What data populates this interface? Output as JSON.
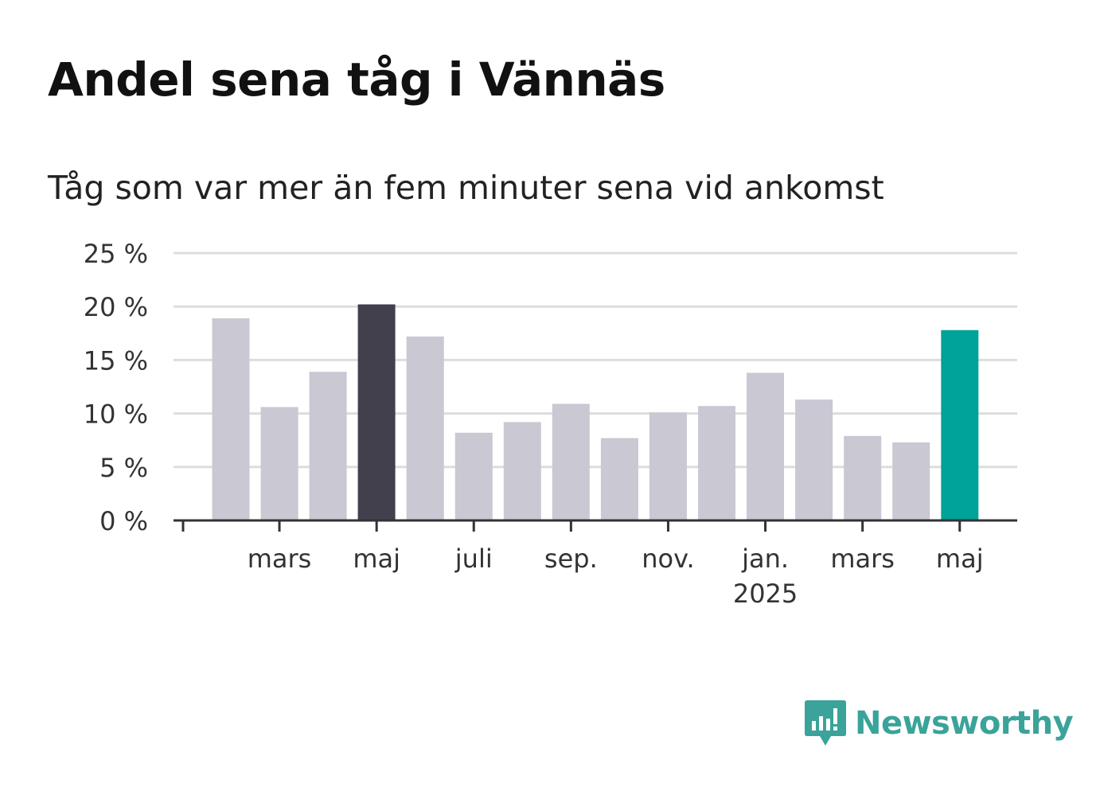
{
  "title": "Andel sena tåg i Vännäs",
  "subtitle": "Tåg som var mer än fem minuter sena vid ankomst",
  "brand": {
    "name": "Newsworthy",
    "color": "#3aa39a",
    "icon": "newsworthy-logo-icon"
  },
  "colors": {
    "default_bar": "#c9c8d3",
    "max_bar": "#43404d",
    "latest_bar": "#00a397",
    "grid": "#dddddd",
    "axis": "#333333"
  },
  "chart_data": {
    "type": "bar",
    "title": "Andel sena tåg i Vännäs",
    "subtitle": "Tåg som var mer än fem minuter sena vid ankomst",
    "xlabel": "",
    "ylabel": "",
    "x": [
      "2024-02",
      "2024-03",
      "2024-04",
      "2024-05",
      "2024-06",
      "2024-07",
      "2024-08",
      "2024-09",
      "2024-10",
      "2024-11",
      "2024-12",
      "2025-01",
      "2025-02",
      "2025-03",
      "2025-04",
      "2025-05"
    ],
    "values": [
      18.9,
      10.6,
      13.9,
      20.2,
      17.2,
      8.2,
      9.2,
      10.9,
      7.7,
      10.1,
      10.7,
      13.8,
      11.3,
      7.9,
      7.3,
      17.8
    ],
    "highlight": {
      "max_index": 3,
      "latest_index": 15
    },
    "ylim": [
      0,
      25
    ],
    "yticks": [
      0,
      5,
      10,
      15,
      20,
      25
    ],
    "ytick_labels": [
      "0 %",
      "5 %",
      "10 %",
      "15 %",
      "20 %",
      "25 %"
    ],
    "xtick_labels": [
      {
        "at": "2024-03",
        "label": "mars"
      },
      {
        "at": "2024-05",
        "label": "maj"
      },
      {
        "at": "2024-07",
        "label": "juli"
      },
      {
        "at": "2024-09",
        "label": "sep."
      },
      {
        "at": "2024-11",
        "label": "nov."
      },
      {
        "at": "2025-01",
        "label": "jan.",
        "sublabel": "2025"
      },
      {
        "at": "2025-03",
        "label": "mars"
      },
      {
        "at": "2025-05",
        "label": "maj"
      }
    ],
    "grid": true,
    "legend": "none"
  }
}
